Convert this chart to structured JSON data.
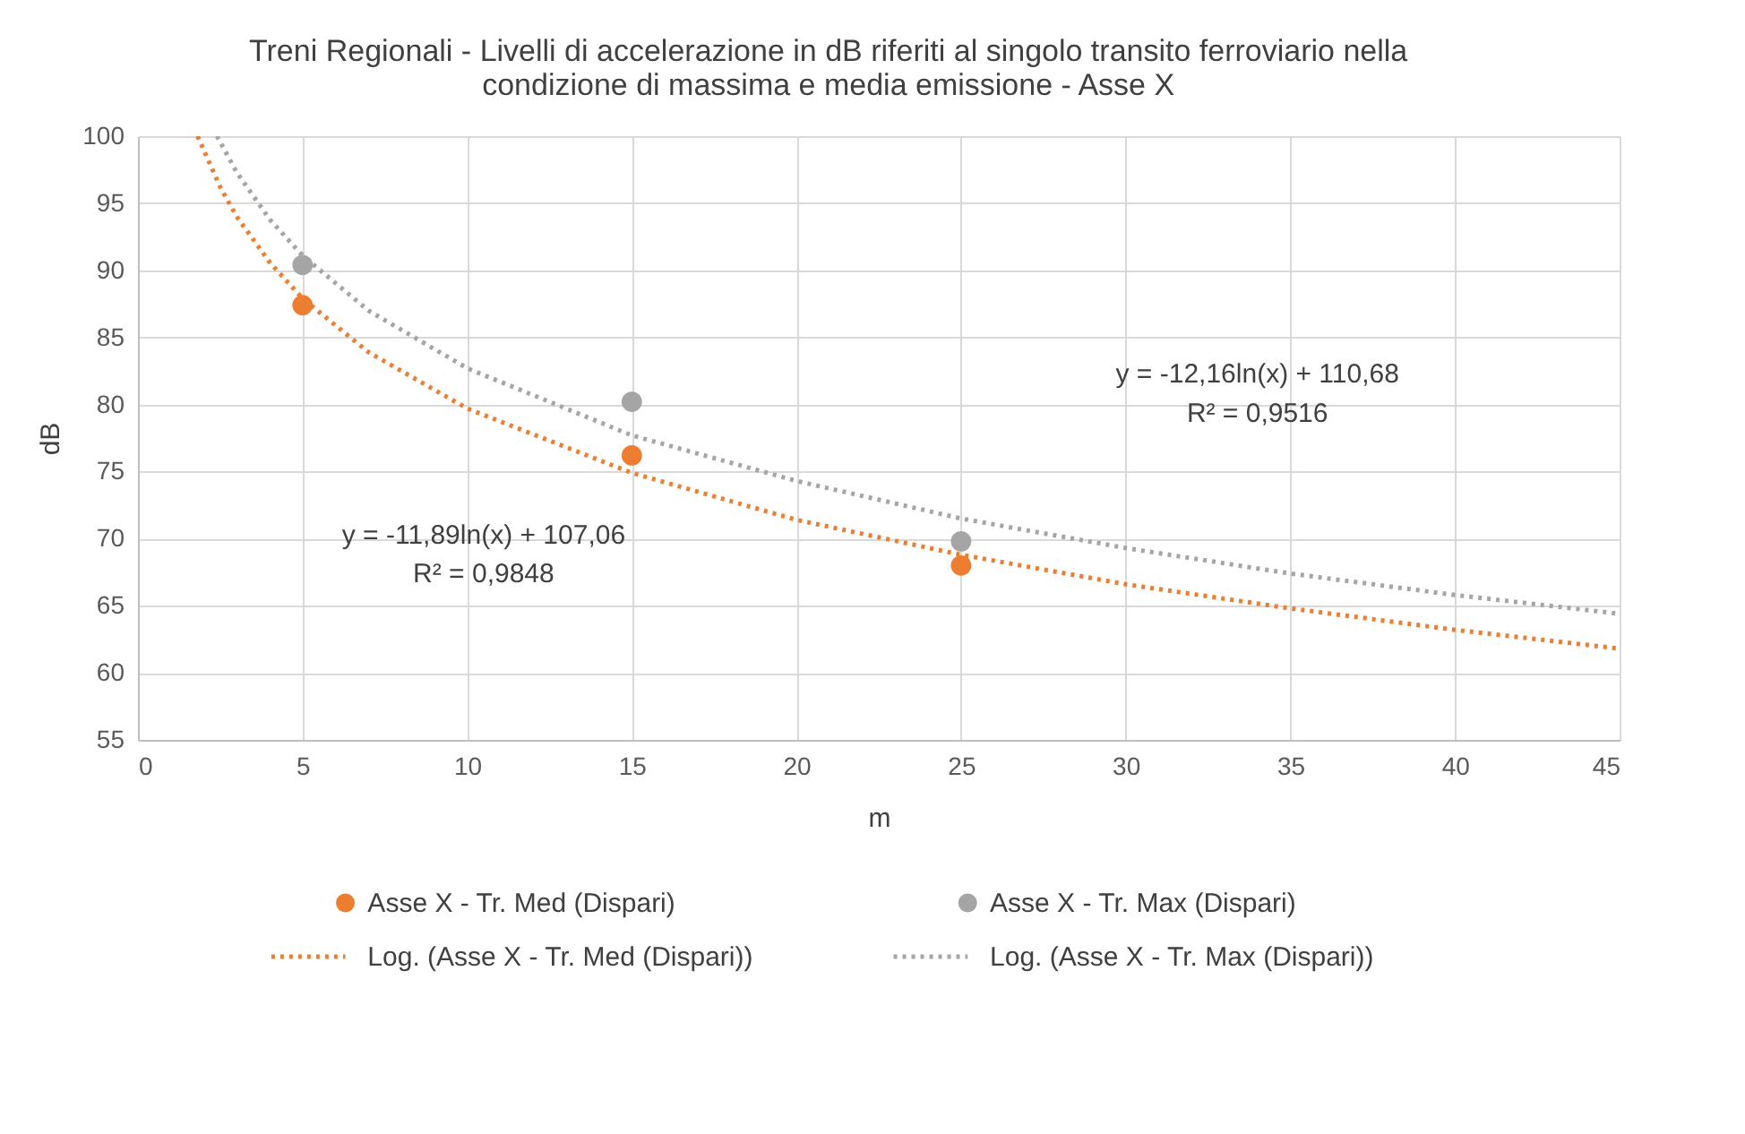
{
  "chart_data": {
    "type": "scatter",
    "title": [
      "Treni Regionali - Livelli di accelerazione in dB riferiti al singolo transito ferroviario nella",
      "condizione di massima e media emissione - Asse X"
    ],
    "xlabel": "m",
    "ylabel": "dB",
    "xlim": [
      0,
      45
    ],
    "xticks": [
      0,
      5,
      10,
      15,
      20,
      25,
      30,
      35,
      40,
      45
    ],
    "ylim": [
      55,
      100
    ],
    "yticks": [
      55,
      60,
      65,
      70,
      75,
      80,
      85,
      90,
      95,
      100
    ],
    "grid": true,
    "legend": "bottom",
    "series": [
      {
        "name": "Asse X - Tr. Med (Dispari)",
        "marker": "circle",
        "color": "#ed7d31",
        "x": [
          5,
          15,
          25
        ],
        "values": [
          87.4,
          76.2,
          68.0
        ]
      },
      {
        "name": "Asse X - Tr. Max (Dispari)",
        "marker": "circle",
        "color": "#a5a5a5",
        "x": [
          5,
          15,
          25
        ],
        "values": [
          90.4,
          80.2,
          69.8
        ]
      },
      {
        "name": "Log. (Asse X - Tr. Med (Dispari))",
        "type": "line",
        "line_style": "dotted",
        "color": "#ed7d31",
        "x": [
          1.81,
          2.5,
          3,
          4,
          5,
          7,
          10,
          15,
          20,
          25,
          30,
          35,
          40,
          45
        ],
        "values": [
          100.0,
          96.2,
          94.0,
          90.6,
          87.9,
          83.9,
          79.7,
          74.9,
          71.4,
          68.8,
          66.6,
          64.8,
          63.2,
          61.8
        ]
      },
      {
        "name": "Log. (Asse X - Tr. Max (Dispari))",
        "type": "line",
        "line_style": "dotted",
        "color": "#a5a5a5",
        "x": [
          2.4,
          3,
          4,
          5,
          7,
          10,
          15,
          20,
          25,
          30,
          35,
          40,
          45
        ],
        "values": [
          100.0,
          97.3,
          93.8,
          91.1,
          87.0,
          82.7,
          77.7,
          74.3,
          71.5,
          69.3,
          67.4,
          65.8,
          64.4
        ]
      }
    ],
    "annotations": [
      "y = -11,89ln(x) + 107,06",
      "R² = 0,9848",
      "y = -12,16ln(x) + 110,68",
      "R² = 0,9516"
    ]
  }
}
